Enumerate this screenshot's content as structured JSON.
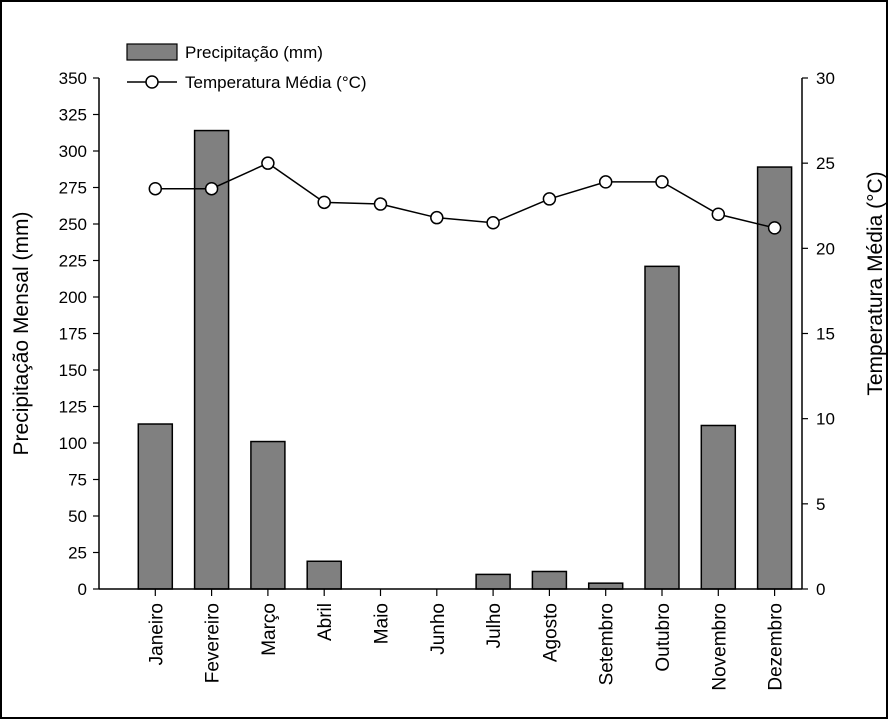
{
  "chart_data": {
    "type": "bar+line",
    "categories": [
      "Janeiro",
      "Fevereiro",
      "Março",
      "Abril",
      "Maio",
      "Junho",
      "Julho",
      "Agosto",
      "Setembro",
      "Outubro",
      "Novembro",
      "Dezembro"
    ],
    "series": [
      {
        "name": "Precipitação (mm)",
        "type": "bar",
        "axis": "left",
        "color": "#808080",
        "values": [
          113,
          314,
          101,
          19,
          0,
          0,
          10,
          12,
          4,
          221,
          112,
          289
        ]
      },
      {
        "name": "Temperatura Média (°C)",
        "type": "line",
        "axis": "right",
        "color": "#000000",
        "values": [
          23.5,
          23.5,
          25.0,
          22.7,
          22.6,
          21.8,
          21.5,
          22.9,
          23.9,
          23.9,
          22.0,
          21.2
        ]
      }
    ],
    "ylabel": "Precipitação Mensal (mm)",
    "y2label": "Temperatura Média (°C)",
    "ylim": [
      0,
      350
    ],
    "y2lim": [
      0,
      30
    ],
    "yticks": [
      0,
      25,
      50,
      75,
      100,
      125,
      150,
      175,
      200,
      225,
      250,
      275,
      300,
      325,
      350
    ],
    "y2ticks": [
      0,
      5,
      10,
      15,
      20,
      25,
      30
    ],
    "legend": "top-left",
    "grid": false
  }
}
